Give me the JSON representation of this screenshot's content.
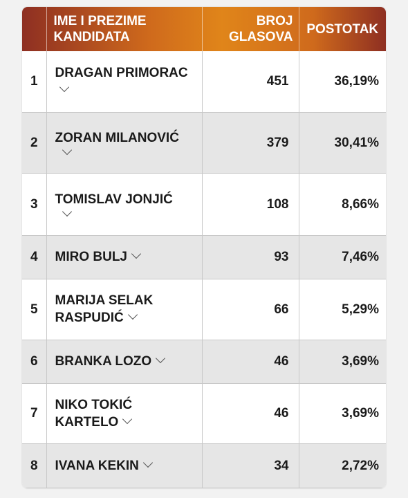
{
  "table": {
    "headers": {
      "name": "IME I PREZIME KANDIDATA",
      "votes": "BROJ GLASOVA",
      "percent": "POSTOTAK"
    },
    "rows": [
      {
        "rank": "1",
        "name": "DRAGAN PRIMORAC",
        "votes": "451",
        "percent": "36,19%"
      },
      {
        "rank": "2",
        "name": "ZORAN MILANOVIĆ",
        "votes": "379",
        "percent": "30,41%"
      },
      {
        "rank": "3",
        "name": "TOMISLAV JONJIĆ",
        "votes": "108",
        "percent": "8,66%"
      },
      {
        "rank": "4",
        "name": "MIRO BULJ",
        "votes": "93",
        "percent": "7,46%"
      },
      {
        "rank": "5",
        "name": "MARIJA SELAK RASPUDIĆ",
        "votes": "66",
        "percent": "5,29%"
      },
      {
        "rank": "6",
        "name": "BRANKA LOZO",
        "votes": "46",
        "percent": "3,69%"
      },
      {
        "rank": "7",
        "name": "NIKO TOKIĆ KARTELO",
        "votes": "46",
        "percent": "3,69%"
      },
      {
        "rank": "8",
        "name": "IVANA KEKIN",
        "votes": "34",
        "percent": "2,72%"
      }
    ]
  },
  "icons": {
    "expand": "chevron-down-icon"
  },
  "colors": {
    "header_dark": "#8e2f22",
    "header_light": "#e0851a",
    "row_alt": "#e6e6e6"
  }
}
